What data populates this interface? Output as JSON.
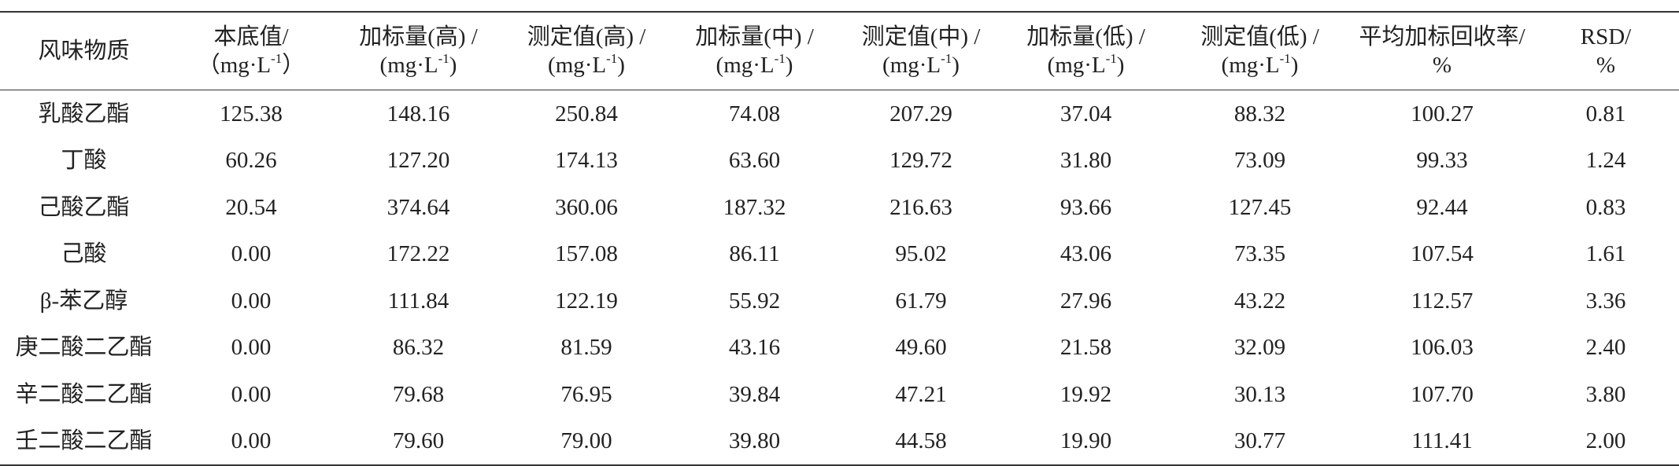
{
  "table": {
    "header": [
      {
        "lines": [
          "风味物质"
        ]
      },
      {
        "lines": [
          "本底值/"
        ],
        "unit": {
          "pre": "（mg·L",
          "sup": "-1",
          "post": "）"
        }
      },
      {
        "lines": [
          "加标量(高) /"
        ],
        "unit": {
          "pre": "(mg·L",
          "sup": "-1",
          "post": ")"
        }
      },
      {
        "lines": [
          "测定值(高) /"
        ],
        "unit": {
          "pre": "(mg·L",
          "sup": "-1",
          "post": ")"
        }
      },
      {
        "lines": [
          "加标量(中) /"
        ],
        "unit": {
          "pre": "(mg·L",
          "sup": "-1",
          "post": ")"
        }
      },
      {
        "lines": [
          "测定值(中) /"
        ],
        "unit": {
          "pre": "(mg·L",
          "sup": "-1",
          "post": ")"
        }
      },
      {
        "lines": [
          "加标量(低) /"
        ],
        "unit": {
          "pre": "(mg·L",
          "sup": "-1",
          "post": ")"
        }
      },
      {
        "lines": [
          "测定值(低) /"
        ],
        "unit": {
          "pre": "(mg·L",
          "sup": "-1",
          "post": ")"
        }
      },
      {
        "lines": [
          "平均加标回收率/",
          "%"
        ]
      },
      {
        "lines": [
          "RSD/",
          "%"
        ]
      }
    ],
    "rows": [
      [
        "乳酸乙酯",
        "125.38",
        "148.16",
        "250.84",
        "74.08",
        "207.29",
        "37.04",
        "88.32",
        "100.27",
        "0.81"
      ],
      [
        "丁酸",
        "60.26",
        "127.20",
        "174.13",
        "63.60",
        "129.72",
        "31.80",
        "73.09",
        "99.33",
        "1.24"
      ],
      [
        "己酸乙酯",
        "20.54",
        "374.64",
        "360.06",
        "187.32",
        "216.63",
        "93.66",
        "127.45",
        "92.44",
        "0.83"
      ],
      [
        "己酸",
        "0.00",
        "172.22",
        "157.08",
        "86.11",
        "95.02",
        "43.06",
        "73.35",
        "107.54",
        "1.61"
      ],
      [
        "β-苯乙醇",
        "0.00",
        "111.84",
        "122.19",
        "55.92",
        "61.79",
        "27.96",
        "43.22",
        "112.57",
        "3.36"
      ],
      [
        "庚二酸二乙酯",
        "0.00",
        "86.32",
        "81.59",
        "43.16",
        "49.60",
        "21.58",
        "32.09",
        "106.03",
        "2.40"
      ],
      [
        "辛二酸二乙酯",
        "0.00",
        "79.68",
        "76.95",
        "39.84",
        "47.21",
        "19.92",
        "30.13",
        "107.70",
        "3.80"
      ],
      [
        "壬二酸二乙酯",
        "0.00",
        "79.60",
        "79.00",
        "39.80",
        "44.58",
        "19.90",
        "30.77",
        "111.41",
        "2.00"
      ]
    ]
  }
}
